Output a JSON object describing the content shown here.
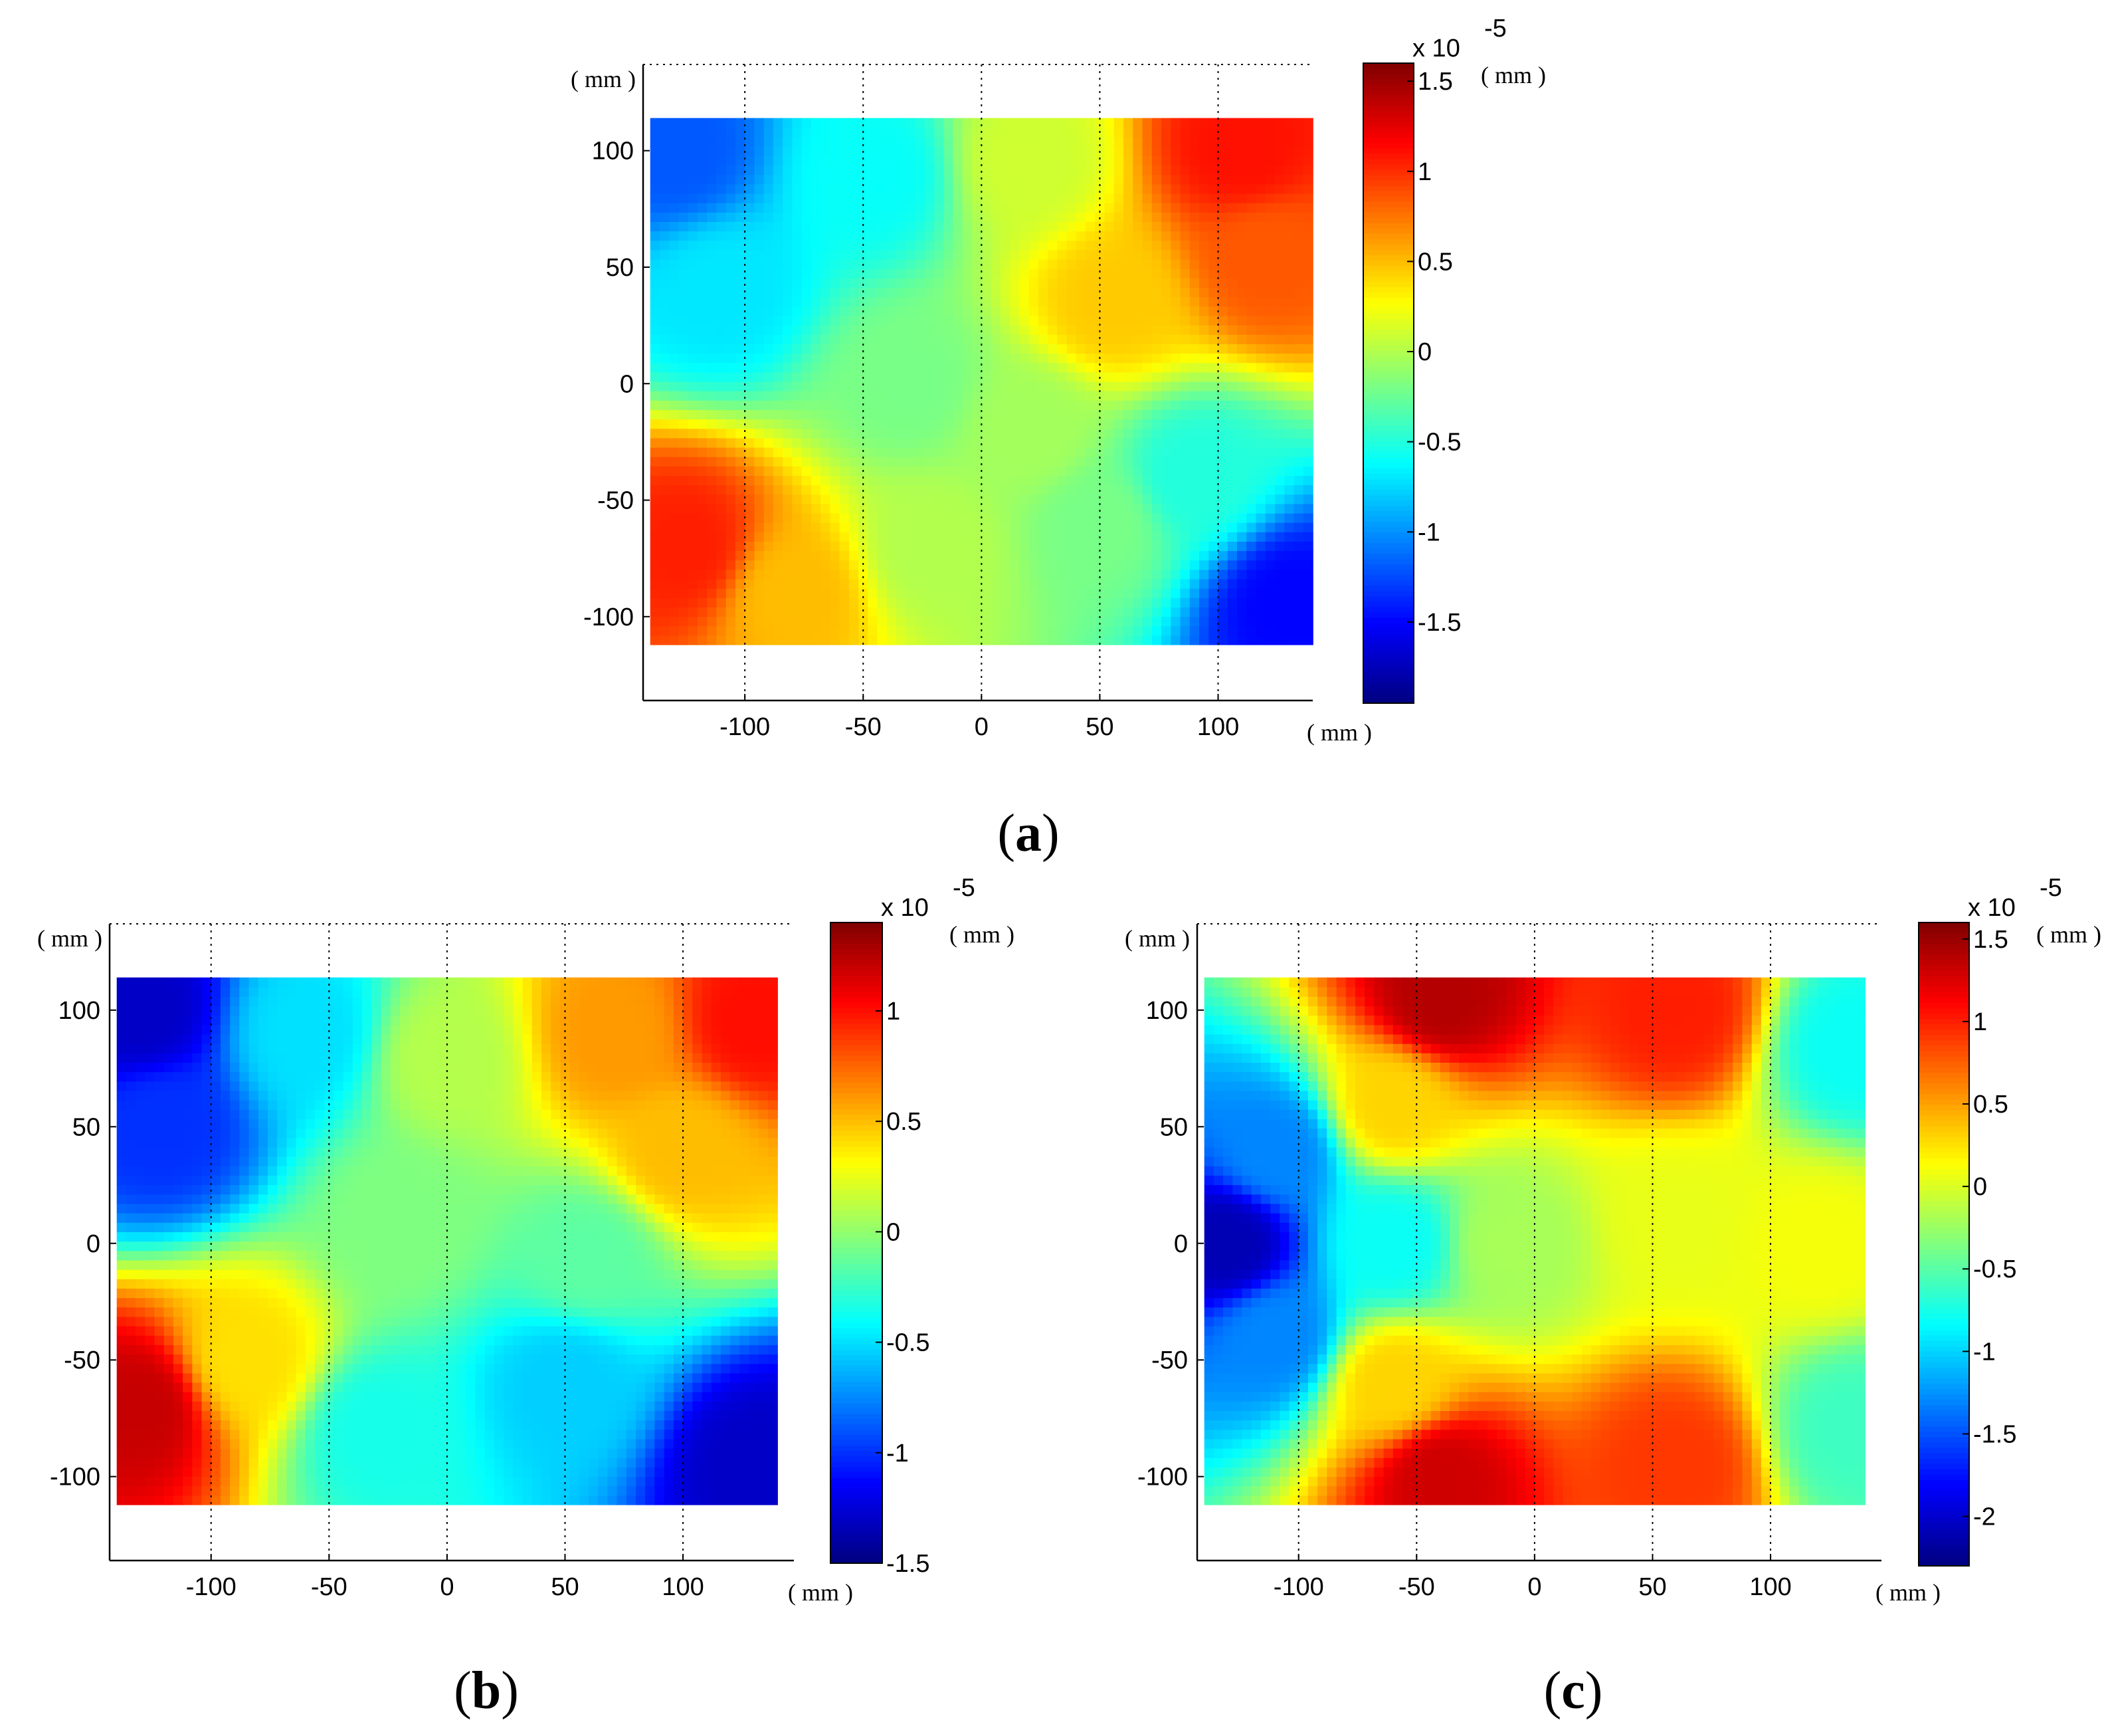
{
  "chart_data": [
    {
      "type": "heatmap",
      "panel_label": "a",
      "x_unit": "( mm )",
      "y_unit": "( mm )",
      "xlim": [
        -143,
        140
      ],
      "ylim": [
        -136,
        137
      ],
      "x_ticks": [
        -100,
        -50,
        0,
        50,
        100
      ],
      "y_ticks": [
        100,
        50,
        0,
        -50,
        -100
      ],
      "data_extent": {
        "x": [
          -140,
          140
        ],
        "y": [
          -112,
          114
        ]
      },
      "grid": "dotted",
      "colorbar": {
        "scale_label": "x 10",
        "exponent": "-5",
        "unit": "( mm )",
        "range": [
          -1.95,
          1.6
        ],
        "ticks": [
          1.5,
          1,
          0.5,
          0,
          -0.5,
          -1,
          -1.5
        ],
        "tick_labels": [
          "1.5",
          "1",
          "0.5",
          "0",
          "-0.5",
          "-1",
          "-1.5"
        ],
        "colormap": "jet"
      },
      "field": [
        {
          "x": -130,
          "y": 100,
          "v": -1.2
        },
        {
          "x": -45,
          "y": 90,
          "v": -0.6
        },
        {
          "x": 20,
          "y": 95,
          "v": 0.1
        },
        {
          "x": 110,
          "y": 100,
          "v": 1.1
        },
        {
          "x": -110,
          "y": 40,
          "v": -0.7
        },
        {
          "x": 55,
          "y": 35,
          "v": 0.45
        },
        {
          "x": 120,
          "y": 55,
          "v": 0.85
        },
        {
          "x": -30,
          "y": 0,
          "v": -0.2
        },
        {
          "x": 20,
          "y": -20,
          "v": -0.05
        },
        {
          "x": -125,
          "y": -70,
          "v": 1.05
        },
        {
          "x": -80,
          "y": -90,
          "v": 0.5
        },
        {
          "x": -20,
          "y": -70,
          "v": 0.0
        },
        {
          "x": 50,
          "y": -60,
          "v": -0.2
        },
        {
          "x": 130,
          "y": -95,
          "v": -1.5
        },
        {
          "x": 90,
          "y": -40,
          "v": -0.5
        }
      ]
    },
    {
      "type": "heatmap",
      "panel_label": "b",
      "x_unit": "( mm )",
      "y_unit": "( mm )",
      "xlim": [
        -143,
        147
      ],
      "ylim": [
        -136,
        137
      ],
      "x_ticks": [
        -100,
        -50,
        0,
        50,
        100
      ],
      "y_ticks": [
        100,
        50,
        0,
        -50,
        -100
      ],
      "data_extent": {
        "x": [
          -140,
          140
        ],
        "y": [
          -112,
          114
        ]
      },
      "grid": "dotted",
      "colorbar": {
        "scale_label": "x 10",
        "exponent": "-5",
        "unit": "( mm )",
        "range": [
          -1.5,
          1.4
        ],
        "ticks": [
          1,
          0.5,
          0,
          -0.5,
          -1,
          -1.5
        ],
        "tick_labels": [
          "1",
          "0.5",
          "0",
          "-0.5",
          "-1",
          "-1.5"
        ],
        "colormap": "jet"
      },
      "field": [
        {
          "x": -130,
          "y": 100,
          "v": -1.3
        },
        {
          "x": -120,
          "y": 50,
          "v": -1.0
        },
        {
          "x": -60,
          "y": 90,
          "v": -0.5
        },
        {
          "x": 0,
          "y": 80,
          "v": 0.1
        },
        {
          "x": 70,
          "y": 90,
          "v": 0.6
        },
        {
          "x": 130,
          "y": 95,
          "v": 1.0
        },
        {
          "x": 100,
          "y": 40,
          "v": 0.5
        },
        {
          "x": -20,
          "y": 10,
          "v": -0.05
        },
        {
          "x": -130,
          "y": -70,
          "v": 1.2
        },
        {
          "x": -85,
          "y": -50,
          "v": 0.4
        },
        {
          "x": -30,
          "y": -80,
          "v": -0.35
        },
        {
          "x": 50,
          "y": -60,
          "v": -0.55
        },
        {
          "x": 130,
          "y": -95,
          "v": -1.3
        },
        {
          "x": 60,
          "y": -5,
          "v": -0.15
        }
      ]
    },
    {
      "type": "heatmap",
      "panel_label": "c",
      "x_unit": "( mm )",
      "y_unit": "( mm )",
      "xlim": [
        -143,
        147
      ],
      "ylim": [
        -136,
        137
      ],
      "x_ticks": [
        -100,
        -50,
        0,
        50,
        100
      ],
      "y_ticks": [
        100,
        50,
        0,
        -50,
        -100
      ],
      "data_extent": {
        "x": [
          -140,
          140
        ],
        "y": [
          -112,
          114
        ]
      },
      "grid": "dotted",
      "colorbar": {
        "scale_label": "x 10",
        "exponent": "-5",
        "unit": "( mm )",
        "range": [
          -2.3,
          1.6
        ],
        "ticks": [
          1.5,
          1,
          0.5,
          0,
          -0.5,
          -1,
          -1.5,
          -2
        ],
        "tick_labels": [
          "1.5",
          "1",
          "0.5",
          "0",
          "-0.5",
          "-1",
          "-1.5",
          "-2"
        ],
        "colormap": "jet"
      },
      "field": [
        {
          "x": -130,
          "y": 0,
          "v": -2.1
        },
        {
          "x": -110,
          "y": 40,
          "v": -1.3
        },
        {
          "x": -110,
          "y": -40,
          "v": -1.3
        },
        {
          "x": -60,
          "y": 0,
          "v": -0.8
        },
        {
          "x": -10,
          "y": 0,
          "v": -0.2
        },
        {
          "x": -40,
          "y": 105,
          "v": 1.4
        },
        {
          "x": 60,
          "y": 100,
          "v": 1.0
        },
        {
          "x": -40,
          "y": -100,
          "v": 1.3
        },
        {
          "x": 60,
          "y": -95,
          "v": 0.9
        },
        {
          "x": 60,
          "y": 10,
          "v": 0.05
        },
        {
          "x": 135,
          "y": 85,
          "v": -0.8
        },
        {
          "x": 135,
          "y": -80,
          "v": -0.6
        },
        {
          "x": 120,
          "y": 0,
          "v": 0.1
        },
        {
          "x": -60,
          "y": 60,
          "v": 0.3
        },
        {
          "x": -60,
          "y": -60,
          "v": 0.3
        }
      ]
    }
  ]
}
